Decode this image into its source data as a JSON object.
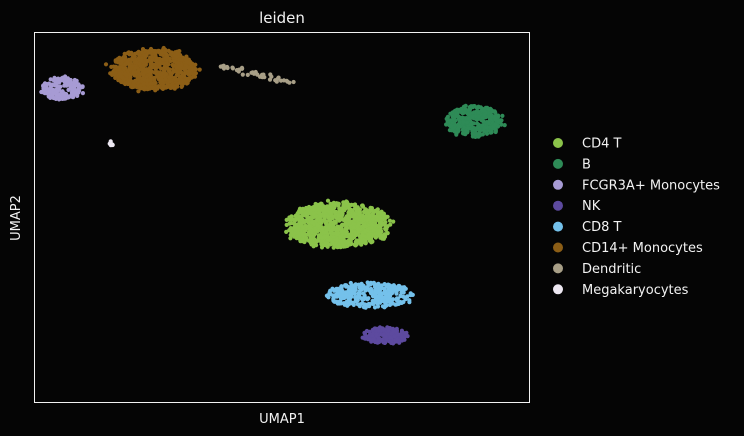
{
  "chart_data": {
    "type": "scatter",
    "title": "leiden",
    "xlabel": "UMAP1",
    "ylabel": "UMAP2",
    "grid": false,
    "axis_ticks": false,
    "legend_position": "right",
    "xlim": [
      -8,
      14
    ],
    "ylim": [
      -8,
      12
    ],
    "background": "#050505",
    "foreground": "#f2f2f2",
    "clusters": [
      {
        "name": "CD4 T",
        "color": "#8BC34A",
        "n": 950,
        "center": [
          5.5,
          1.6
        ],
        "spread": [
          1.8,
          0.95
        ],
        "shape": "ellipse"
      },
      {
        "name": "B",
        "color": "#2E8B57",
        "n": 340,
        "center": [
          11.6,
          7.2
        ],
        "spread": [
          1.0,
          0.65
        ],
        "shape": "ellipse"
      },
      {
        "name": "FCGR3A+ Monocytes",
        "color": "#A79BD4",
        "n": 170,
        "center": [
          -6.8,
          9.0
        ],
        "spread": [
          0.7,
          0.5
        ],
        "shape": "ellipse"
      },
      {
        "name": "NK",
        "color": "#5D4A9F",
        "n": 160,
        "center": [
          7.6,
          -4.4
        ],
        "spread": [
          0.8,
          0.35
        ],
        "shape": "ellipse"
      },
      {
        "name": "CD8 T",
        "color": "#74C1EB",
        "n": 330,
        "center": [
          6.9,
          -2.2
        ],
        "spread": [
          1.5,
          0.55
        ],
        "shape": "ellipse"
      },
      {
        "name": "CD14+ Monocytes",
        "color": "#8C5E16",
        "n": 720,
        "center": [
          -2.7,
          10.0
        ],
        "spread": [
          1.5,
          0.85
        ],
        "shape": "ellipse"
      },
      {
        "name": "Dendritic",
        "color": "#A89F87",
        "n": 45,
        "from": [
          0.3,
          10.2
        ],
        "to": [
          3.5,
          9.3
        ],
        "spread": [
          0.1,
          0.08
        ],
        "shape": "line"
      },
      {
        "name": "Megakaryocytes",
        "color": "#EDE8F2",
        "n": 8,
        "center": [
          -4.6,
          6.0
        ],
        "spread": [
          0.06,
          0.12
        ],
        "shape": "ellipse"
      }
    ]
  }
}
